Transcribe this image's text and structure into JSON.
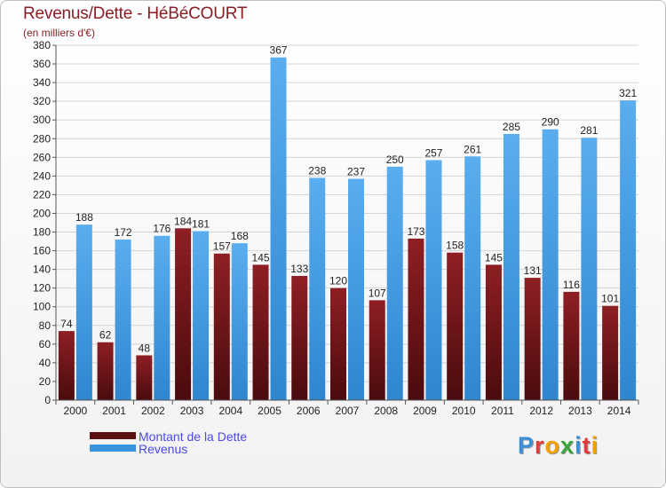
{
  "title": "Revenus/Dette - HéBéCOURT",
  "subtitle": "(en milliers d'€)",
  "colors": {
    "dette": "#7a1418",
    "revenus": "#4aa3e8",
    "title": "#8b1d24",
    "legend_text": "#4a4ae8"
  },
  "logo": {
    "text": "Proxiti",
    "letter_colors": [
      "#3a8fd8",
      "#e23b3b",
      "#f4a100",
      "#3aa33a",
      "#3a8fd8",
      "#e23b3b",
      "#f4a100"
    ]
  },
  "legend": [
    {
      "label": "Montant de la Dette",
      "color": "#5a0f12"
    },
    {
      "label": "Revenus",
      "color": "#3a95dd"
    }
  ],
  "chart_data": {
    "type": "bar",
    "title": "Revenus/Dette - HéBéCOURT",
    "ylabel": "(en milliers d'€)",
    "xlabel": "",
    "categories": [
      "2000",
      "2001",
      "2002",
      "2003",
      "2004",
      "2005",
      "2006",
      "2007",
      "2008",
      "2009",
      "2010",
      "2011",
      "2012",
      "2013",
      "2014"
    ],
    "series": [
      {
        "name": "Montant de la Dette",
        "values": [
          74,
          62,
          48,
          184,
          157,
          145,
          133,
          120,
          107,
          173,
          158,
          145,
          131,
          116,
          101
        ]
      },
      {
        "name": "Revenus",
        "values": [
          188,
          172,
          176,
          181,
          168,
          367,
          238,
          237,
          250,
          257,
          261,
          285,
          290,
          281,
          321
        ]
      }
    ],
    "ylim": [
      0,
      380
    ],
    "ytick_step": 20,
    "grid": true,
    "legend_position": "bottom-left"
  }
}
